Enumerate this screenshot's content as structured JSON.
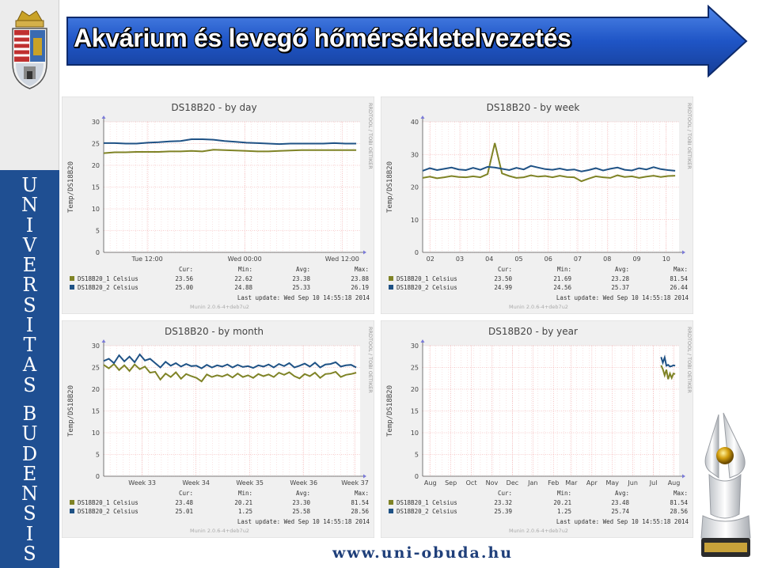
{
  "title": "Akvárium és levegő hőmérsékletelvezetés",
  "sidebar_text": [
    "U",
    "N",
    "I",
    "V",
    "E",
    "R",
    "S",
    "I",
    "T",
    "A",
    "S",
    "",
    "B",
    "U",
    "D",
    "E",
    "N",
    "S",
    "I",
    "S"
  ],
  "footer_url": "www.uni-obuda.hu",
  "colors": {
    "series1": "#7f8326",
    "series2": "#1f5285",
    "sidebar": "#1f4f92",
    "banner": "#1e52c4",
    "grid": "#f09a9a"
  },
  "chart_data": [
    {
      "type": "line",
      "title": "DS18B20 - by day",
      "ylabel": "Temp/DS18B20",
      "side_label": "RRDTOOL / TOBI OETIKER",
      "ylim": [
        0,
        30
      ],
      "yticks": [
        "0",
        "5",
        "10",
        "15",
        "20",
        "25",
        "30"
      ],
      "xticks": [
        "Tue 12:00",
        "Wed 00:00",
        "Wed 12:00"
      ],
      "xticks_pos": [
        0.17,
        0.55,
        0.93
      ],
      "series": [
        {
          "name": "DS18B20_1 Celsius",
          "cur": "23.56",
          "min": "22.62",
          "avg": "23.38",
          "max": "23.88",
          "values": [
            22.8,
            23.0,
            23.0,
            23.1,
            23.1,
            23.1,
            23.2,
            23.2,
            23.3,
            23.2,
            23.6,
            23.5,
            23.4,
            23.3,
            23.2,
            23.2,
            23.3,
            23.4,
            23.5,
            23.5,
            23.5,
            23.5,
            23.5,
            23.5
          ]
        },
        {
          "name": "DS18B20_2 Celsius",
          "cur": "25.00",
          "min": "24.88",
          "avg": "25.33",
          "max": "26.19",
          "values": [
            25.1,
            25.1,
            25.0,
            25.0,
            25.2,
            25.3,
            25.5,
            25.6,
            26.0,
            26.0,
            25.9,
            25.6,
            25.4,
            25.2,
            25.1,
            25.0,
            24.9,
            25.0,
            25.0,
            25.0,
            25.0,
            25.1,
            25.0,
            25.0
          ]
        }
      ],
      "legend_header": {
        "cur": "Cur:",
        "min": "Min:",
        "avg": "Avg:",
        "max": "Max:"
      },
      "last_update": "Last update: Wed Sep 10 14:55:18 2014",
      "munin": "Munin 2.0.6-4+deb7u2"
    },
    {
      "type": "line",
      "title": "DS18B20 - by week",
      "ylabel": "Temp/DS18B20",
      "side_label": "RRDTOOL / TOBI OETIKER",
      "ylim": [
        0,
        40
      ],
      "yticks": [
        "0",
        "10",
        "20",
        "30",
        "40"
      ],
      "xticks": [
        "02",
        "03",
        "04",
        "05",
        "06",
        "07",
        "08",
        "09",
        "10"
      ],
      "xticks_pos": [
        0.03,
        0.145,
        0.26,
        0.375,
        0.49,
        0.605,
        0.72,
        0.835,
        0.95
      ],
      "series": [
        {
          "name": "DS18B20_1 Celsius",
          "cur": "23.50",
          "min": "21.69",
          "avg": "23.28",
          "max": "81.54",
          "values": [
            22.8,
            23.2,
            22.7,
            23.0,
            23.4,
            23.1,
            23.0,
            23.3,
            23.0,
            24.0,
            33.5,
            24.2,
            23.4,
            22.8,
            23.0,
            23.6,
            23.2,
            23.4,
            23.0,
            23.5,
            23.1,
            23.0,
            21.8,
            22.6,
            23.3,
            23.0,
            22.8,
            23.6,
            23.1,
            23.3,
            22.8,
            23.2,
            23.5,
            23.1,
            23.4,
            23.5
          ]
        },
        {
          "name": "DS18B20_2 Celsius",
          "cur": "24.99",
          "min": "24.56",
          "avg": "25.37",
          "max": "26.44",
          "values": [
            25.0,
            25.8,
            25.2,
            25.6,
            26.0,
            25.4,
            25.2,
            25.9,
            25.3,
            26.2,
            26.0,
            25.6,
            25.2,
            25.9,
            25.4,
            26.5,
            26.0,
            25.5,
            25.3,
            25.7,
            25.2,
            25.4,
            24.8,
            25.2,
            25.8,
            25.1,
            25.6,
            26.0,
            25.3,
            25.1,
            25.8,
            25.4,
            26.1,
            25.5,
            25.2,
            25.0
          ]
        }
      ],
      "legend_header": {
        "cur": "Cur:",
        "min": "Min:",
        "avg": "Avg:",
        "max": "Max:"
      },
      "last_update": "Last update: Wed Sep 10 14:55:18 2014",
      "munin": "Munin 2.0.6-4+deb7u2"
    },
    {
      "type": "line",
      "title": "DS18B20 - by month",
      "ylabel": "Temp/DS18B20",
      "side_label": "RRDTOOL / TOBI OETIKER",
      "ylim": [
        0,
        30
      ],
      "yticks": [
        "0",
        "5",
        "10",
        "15",
        "20",
        "25",
        "30"
      ],
      "xticks": [
        "Week 33",
        "Week 34",
        "Week 35",
        "Week 36",
        "Week 37"
      ],
      "xticks_pos": [
        0.15,
        0.36,
        0.57,
        0.78,
        0.98
      ],
      "series": [
        {
          "name": "DS18B20_1 Celsius",
          "cur": "23.48",
          "min": "20.21",
          "avg": "23.30",
          "max": "81.54",
          "values": [
            25.6,
            24.8,
            25.8,
            24.4,
            25.5,
            24.2,
            25.7,
            24.6,
            25.2,
            23.8,
            24.0,
            22.2,
            23.6,
            22.8,
            23.9,
            22.4,
            23.5,
            23.0,
            22.6,
            21.8,
            23.4,
            22.8,
            23.2,
            22.9,
            23.4,
            22.7,
            23.6,
            22.8,
            23.2,
            22.6,
            23.5,
            23.0,
            23.4,
            22.8,
            23.8,
            23.3,
            23.9,
            23.0,
            22.5,
            23.5,
            23.0,
            23.8,
            22.6,
            23.5,
            23.6,
            24.0,
            22.8,
            23.3,
            23.5,
            23.8
          ]
        },
        {
          "name": "DS18B20_2 Celsius",
          "cur": "25.01",
          "min": "1.25",
          "avg": "25.58",
          "max": "28.56",
          "values": [
            26.5,
            27.0,
            26.0,
            27.8,
            26.4,
            27.5,
            26.2,
            28.0,
            26.6,
            27.0,
            26.0,
            25.0,
            26.3,
            25.4,
            26.0,
            25.2,
            25.8,
            25.3,
            25.4,
            24.8,
            25.6,
            25.0,
            25.5,
            25.2,
            25.7,
            25.0,
            25.6,
            25.1,
            25.3,
            24.9,
            25.5,
            25.2,
            25.7,
            25.0,
            25.8,
            25.3,
            26.0,
            25.0,
            25.4,
            25.9,
            25.2,
            26.1,
            25.0,
            25.7,
            25.8,
            26.2,
            25.2,
            25.5,
            25.6,
            25.0
          ]
        }
      ],
      "legend_header": {
        "cur": "Cur:",
        "min": "Min:",
        "avg": "Avg:",
        "max": "Max:"
      },
      "last_update": "Last update: Wed Sep 10 14:55:18 2014",
      "munin": "Munin 2.0.6-4+deb7u2"
    },
    {
      "type": "line",
      "title": "DS18B20 - by year",
      "ylabel": "Temp/DS18B20",
      "side_label": "RRDTOOL / TOBI OETIKER",
      "ylim": [
        0,
        30
      ],
      "yticks": [
        "0",
        "5",
        "10",
        "15",
        "20",
        "25",
        "30"
      ],
      "xticks": [
        "Aug",
        "Sep",
        "Oct",
        "Nov",
        "Dec",
        "Jan",
        "Feb",
        "Mar",
        "Apr",
        "May",
        "Jun",
        "Jul",
        "Aug"
      ],
      "xticks_pos": [
        0.03,
        0.11,
        0.19,
        0.27,
        0.35,
        0.43,
        0.51,
        0.58,
        0.66,
        0.74,
        0.82,
        0.9,
        0.98
      ],
      "series": [
        {
          "name": "DS18B20_1 Celsius",
          "cur": "23.32",
          "min": "20.21",
          "avg": "23.48",
          "max": "81.54",
          "start": 0.93,
          "values": [
            25.5,
            24.6,
            23.2,
            24.5,
            22.3,
            23.6,
            22.6,
            23.6,
            23.5
          ]
        },
        {
          "name": "DS18B20_2 Celsius",
          "cur": "25.39",
          "min": "1.25",
          "avg": "25.74",
          "max": "28.56",
          "start": 0.93,
          "values": [
            27.4,
            26.1,
            27.3,
            25.4,
            25.6,
            25.2,
            25.3,
            25.5,
            25.4
          ]
        }
      ],
      "legend_header": {
        "cur": "Cur:",
        "min": "Min:",
        "avg": "Avg:",
        "max": "Max:"
      },
      "last_update": "Last update: Wed Sep 10 14:55:18 2014",
      "munin": "Munin 2.0.6-4+deb7u2"
    }
  ]
}
